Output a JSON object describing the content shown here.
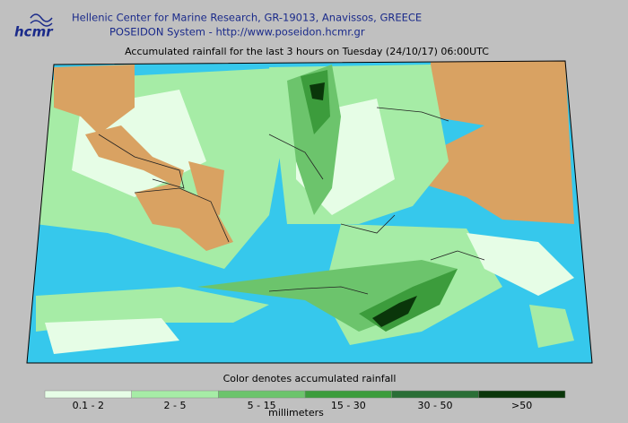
{
  "header": {
    "logo": "hcmr",
    "line1": "Hellenic Center for Marine Research, GR-19013, Anavissos, GREECE",
    "line2": "POSEIDON System - http://www.poseidon.hcmr.gr"
  },
  "map": {
    "title": "Accumulated rainfall for the last 3 hours on Tuesday (24/10/17) 06:00UTC"
  },
  "legend": {
    "title": "Color denotes accumulated rainfall",
    "unit": "millimeters",
    "items": [
      {
        "label": "0.1 - 2",
        "color": "#e6fde6"
      },
      {
        "label": "2 - 5",
        "color": "#a6eca6"
      },
      {
        "label": "5 - 15",
        "color": "#6cc46c"
      },
      {
        "label": "15 - 30",
        "color": "#3c9c3c"
      },
      {
        "label": "30 - 50",
        "color": "#2a6e36"
      },
      {
        "label": ">50",
        "color": "#0a360a"
      }
    ]
  }
}
